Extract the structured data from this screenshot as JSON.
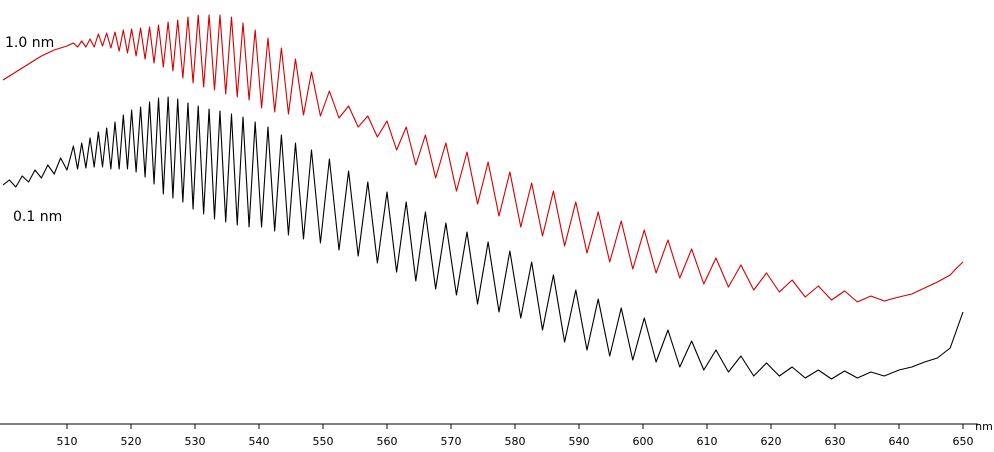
{
  "chart_data": {
    "type": "line",
    "x_label": "nm",
    "xlim": [
      500,
      650
    ],
    "xticks": [
      510,
      520,
      530,
      540,
      550,
      560,
      570,
      580,
      590,
      600,
      610,
      620,
      630,
      640,
      650
    ],
    "ylim": [
      0,
      410
    ],
    "x": [
      500,
      501,
      502,
      503,
      504,
      505,
      506,
      507,
      508,
      509,
      510,
      511,
      511.65,
      512.3,
      512.95,
      513.6,
      514.25,
      514.9,
      515.55,
      516.2,
      516.85,
      517.5,
      518.15,
      518.8,
      519.45,
      520.1,
      520.8,
      521.5,
      522.2,
      522.9,
      523.6,
      524.3,
      525.05,
      525.8,
      526.55,
      527.3,
      528.1,
      528.9,
      529.7,
      530.5,
      531.35,
      532.2,
      533.05,
      533.9,
      534.8,
      535.7,
      536.6,
      537.5,
      538.45,
      539.4,
      540.4,
      541.4,
      542.45,
      543.5,
      544.6,
      545.7,
      546.95,
      548.2,
      549.6,
      551,
      552.5,
      554,
      555.5,
      557,
      558.5,
      560,
      561.5,
      563,
      564.5,
      566,
      567.6,
      569.2,
      570.85,
      572.5,
      574.15,
      575.8,
      577.5,
      579.2,
      580.9,
      582.6,
      584.3,
      586,
      587.75,
      589.5,
      591.25,
      593,
      594.8,
      596.6,
      598.4,
      600.2,
      602.05,
      603.9,
      605.75,
      607.6,
      609.5,
      611.4,
      613.35,
      615.3,
      617.3,
      619.3,
      621.3,
      623.3,
      625.35,
      627.4,
      629.45,
      631.5,
      633.5,
      635.6,
      637.7,
      640,
      642,
      644,
      646,
      648,
      649,
      650
    ],
    "series": [
      {
        "name": "1.0 nm",
        "color": "#d40000",
        "values": [
          340,
          344,
          348,
          352,
          356,
          360,
          364,
          367,
          370,
          372,
          374,
          377,
          373,
          379,
          373,
          381,
          373,
          386,
          374,
          387,
          372,
          388,
          369,
          390,
          367,
          391,
          364,
          392,
          361,
          393,
          357,
          395,
          353,
          398,
          349,
          400,
          342,
          403,
          337,
          405,
          333,
          405,
          330,
          405,
          326,
          403,
          323,
          397,
          320,
          390,
          312,
          382,
          308,
          372,
          306,
          361,
          305,
          348,
          304,
          329,
          302,
          314,
          293,
          304,
          283,
          299,
          270,
          293,
          255,
          285,
          242,
          277,
          229,
          268,
          216,
          258,
          204,
          248,
          193,
          237,
          184,
          229,
          174,
          218,
          167,
          208,
          158,
          199,
          151,
          190,
          147,
          180,
          142,
          171,
          136,
          162,
          133,
          155,
          130,
          147,
          128,
          140,
          123,
          134,
          120,
          129,
          118,
          124,
          119,
          123,
          126,
          132,
          138,
          145,
          152,
          158
        ]
      },
      {
        "name": "0.1 nm",
        "color": "#000000",
        "values": [
          235,
          240,
          233,
          244,
          238,
          250,
          242,
          255,
          246,
          262,
          250,
          274,
          251,
          277,
          252,
          282,
          253,
          288,
          253,
          292,
          251,
          298,
          251,
          305,
          251,
          310,
          248,
          313,
          243,
          318,
          236,
          322,
          226,
          323,
          222,
          321,
          218,
          317,
          211,
          314,
          206,
          311,
          201,
          309,
          198,
          306,
          195,
          303,
          193,
          298,
          193,
          293,
          189,
          285,
          185,
          277,
          181,
          270,
          177,
          261,
          170,
          249,
          164,
          238,
          157,
          228,
          148,
          218,
          139,
          208,
          131,
          197,
          125,
          188,
          116,
          178,
          108,
          169,
          102,
          158,
          90,
          145,
          78,
          130,
          70,
          121,
          64,
          112,
          60,
          102,
          58,
          90,
          53,
          79,
          50,
          70,
          48,
          64,
          44,
          57,
          44,
          53,
          42,
          50,
          41,
          49,
          42,
          48,
          44,
          50,
          53,
          58,
          62,
          72,
          90,
          108
        ]
      }
    ]
  }
}
